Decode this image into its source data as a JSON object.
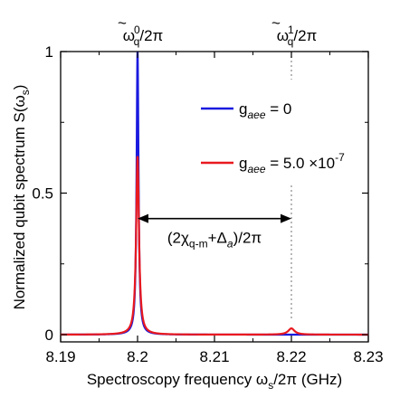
{
  "chart_data": {
    "type": "line",
    "xlabel": "Spectroscopy frequency ω",
    "xlabel_sub": "s",
    "xlabel_suffix": "/2π (GHz)",
    "ylabel": "Normalized qubit spectrum S(ω",
    "ylabel_sub": "s",
    "ylabel_suffix": ")",
    "xlim": [
      8.19,
      8.23
    ],
    "ylim": [
      0,
      1
    ],
    "x_ticks": [
      8.19,
      8.2,
      8.21,
      8.22,
      8.23
    ],
    "x_tick_labels": [
      "8.19",
      "8.2",
      "8.21",
      "8.22",
      "8.23"
    ],
    "y_ticks": [
      0,
      0.5,
      1
    ],
    "y_tick_labels": [
      "0",
      "0.5",
      "1"
    ],
    "grid": false,
    "legend_position": "right-middle",
    "series": [
      {
        "name": "g_aee = 0",
        "color": "#1a1adf",
        "peaks": [
          {
            "x": 8.2,
            "height": 1.0,
            "hwhm": 0.00015
          }
        ],
        "baseline": 0.0
      },
      {
        "name": "g_aee = 5.0 ×10^-7",
        "color": "#e8191f",
        "peaks": [
          {
            "x": 8.2,
            "height": 0.63,
            "hwhm": 0.00022
          },
          {
            "x": 8.22,
            "height": 0.022,
            "hwhm": 0.0005
          }
        ],
        "baseline": 0.0
      }
    ],
    "legend": [
      {
        "prefix": "g",
        "sub": "aee",
        "value": " = 0",
        "color": "#1a1adf"
      },
      {
        "prefix": "g",
        "sub": "aee",
        "value": " = 5.0 ×10",
        "sup": "-7",
        "color": "#e8191f"
      }
    ],
    "annotations": {
      "peak0_label": {
        "main": "ω",
        "tilde": "~",
        "sub": "q",
        "sup": "0",
        "suffix": "/2π",
        "x": 8.2
      },
      "peak1_label": {
        "main": "ω",
        "tilde": "~",
        "sub": "q",
        "sup": "1",
        "suffix": "/2π",
        "x": 8.22
      },
      "arrow": {
        "x_start": 8.2,
        "x_end": 8.22,
        "y": 0.41
      },
      "arrow_label": {
        "prefix": "(2χ",
        "sub1": "q-m",
        "mid": "+Δ",
        "sub2": "a",
        "suffix": ")/2π"
      }
    }
  }
}
